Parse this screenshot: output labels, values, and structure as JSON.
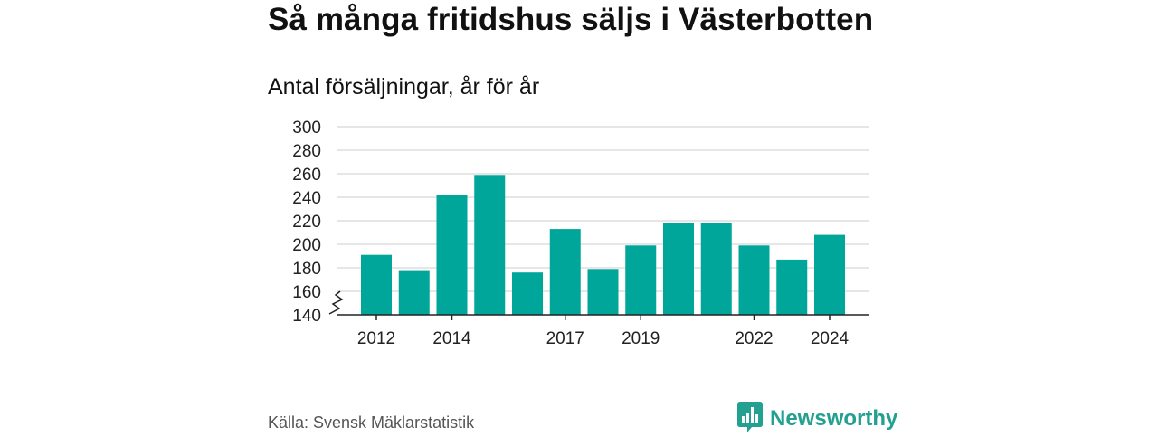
{
  "title": "Så många fritidshus säljs i Västerbotten",
  "subtitle": "Antal försäljningar, år för år",
  "source": "Källa: Svensk Mäklarstatistik",
  "brand": {
    "name": "Newsworthy",
    "icon": "newsworthy-logo-icon",
    "color": "#23a090"
  },
  "colors": {
    "bar": "#00a69a",
    "grid": "#dddddd",
    "axis": "#222222"
  },
  "chart_data": {
    "type": "bar",
    "x": [
      2012,
      2013,
      2014,
      2015,
      2016,
      2017,
      2018,
      2019,
      2020,
      2021,
      2022,
      2023,
      2024
    ],
    "values": [
      191,
      178,
      242,
      259,
      176,
      213,
      179,
      199,
      218,
      218,
      199,
      187,
      208
    ],
    "x_tick_labels": [
      "2012",
      "2014",
      "2017",
      "2019",
      "2022",
      "2024"
    ],
    "y_ticks": [
      140,
      160,
      180,
      200,
      220,
      240,
      260,
      280,
      300
    ],
    "ylim": [
      140,
      300
    ],
    "y_axis_break": true,
    "grid": true,
    "title": "Antal försäljningar, år för år",
    "xlabel": "",
    "ylabel": ""
  }
}
